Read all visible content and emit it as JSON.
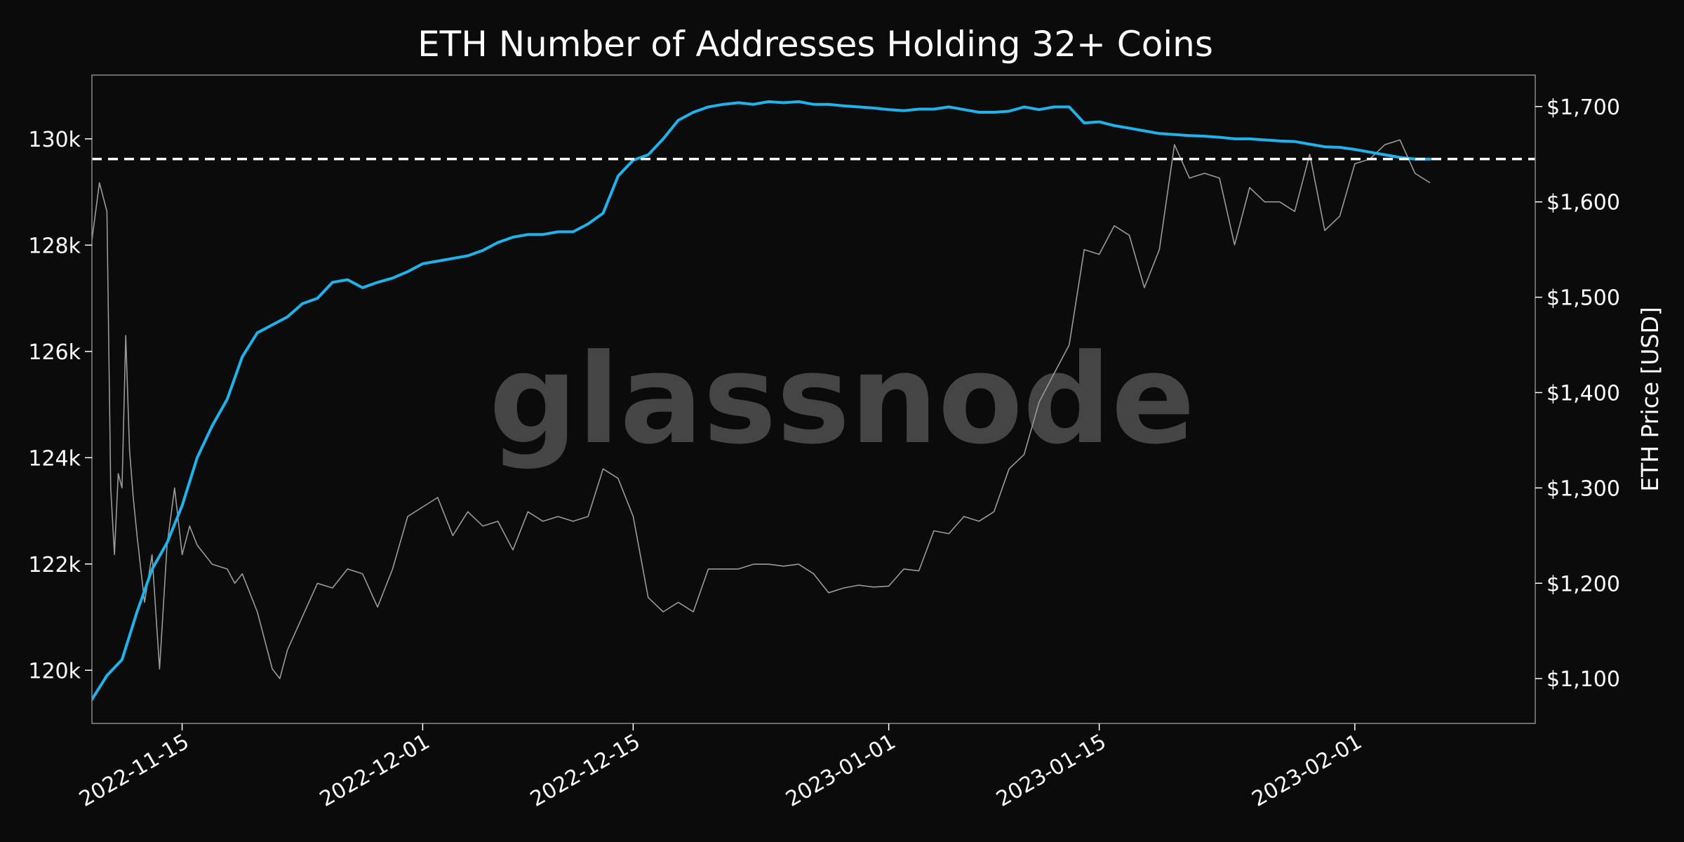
{
  "colors": {
    "background": "#0b0b0b",
    "text": "#ffffff",
    "addresses_line": "#1fb3ec",
    "price_line": "#9a9a9a",
    "threshold_line": "#ffffff",
    "frame": "#8a8a8a",
    "watermark": "#5a5a5a"
  },
  "watermark": "glassnode",
  "chart_data": {
    "type": "line",
    "title": "ETH Number of Addresses Holding 32+ Coins",
    "xlabel": "",
    "ylabel_left": "",
    "ylabel_right": "ETH Price [USD]",
    "x_range": [
      "2022-11-09",
      "2023-02-13"
    ],
    "ylim_left": [
      119000,
      131200
    ],
    "ylim_right": [
      1053,
      1733
    ],
    "x_ticks": [
      {
        "date": "2022-11-15",
        "label": "2022-11-15"
      },
      {
        "date": "2022-12-01",
        "label": "2022-12-01"
      },
      {
        "date": "2022-12-15",
        "label": "2022-12-15"
      },
      {
        "date": "2023-01-01",
        "label": "2023-01-01"
      },
      {
        "date": "2023-01-15",
        "label": "2023-01-15"
      },
      {
        "date": "2023-02-01",
        "label": "2023-02-01"
      }
    ],
    "y_ticks_left": [
      {
        "value": 120000,
        "label": "120k"
      },
      {
        "value": 122000,
        "label": "122k"
      },
      {
        "value": 124000,
        "label": "124k"
      },
      {
        "value": 126000,
        "label": "126k"
      },
      {
        "value": 128000,
        "label": "128k"
      },
      {
        "value": 130000,
        "label": "130k"
      }
    ],
    "y_ticks_right": [
      {
        "value": 1100,
        "label": "$1,100"
      },
      {
        "value": 1200,
        "label": "$1,200"
      },
      {
        "value": 1300,
        "label": "$1,300"
      },
      {
        "value": 1400,
        "label": "$1,400"
      },
      {
        "value": 1500,
        "label": "$1,500"
      },
      {
        "value": 1600,
        "label": "$1,600"
      },
      {
        "value": 1700,
        "label": "$1,700"
      }
    ],
    "threshold": {
      "value": 129620,
      "style": "dashed"
    },
    "grid": false,
    "series": [
      {
        "axis": "left",
        "points": [
          [
            "2022-11-09",
            119450
          ],
          [
            "2022-11-10",
            119900
          ],
          [
            "2022-11-11",
            120200
          ],
          [
            "2022-11-12",
            121100
          ],
          [
            "2022-11-13",
            121900
          ],
          [
            "2022-11-14",
            122400
          ],
          [
            "2022-11-15",
            123100
          ],
          [
            "2022-11-16",
            124000
          ],
          [
            "2022-11-17",
            124600
          ],
          [
            "2022-11-18",
            125100
          ],
          [
            "2022-11-19",
            125900
          ],
          [
            "2022-11-20",
            126350
          ],
          [
            "2022-11-21",
            126500
          ],
          [
            "2022-11-22",
            126650
          ],
          [
            "2022-11-23",
            126900
          ],
          [
            "2022-11-24",
            127000
          ],
          [
            "2022-11-25",
            127300
          ],
          [
            "2022-11-26",
            127350
          ],
          [
            "2022-11-27",
            127200
          ],
          [
            "2022-11-28",
            127300
          ],
          [
            "2022-11-29",
            127380
          ],
          [
            "2022-11-30",
            127500
          ],
          [
            "2022-12-01",
            127650
          ],
          [
            "2022-12-02",
            127700
          ],
          [
            "2022-12-03",
            127750
          ],
          [
            "2022-12-04",
            127800
          ],
          [
            "2022-12-05",
            127900
          ],
          [
            "2022-12-06",
            128050
          ],
          [
            "2022-12-07",
            128150
          ],
          [
            "2022-12-08",
            128200
          ],
          [
            "2022-12-09",
            128200
          ],
          [
            "2022-12-10",
            128250
          ],
          [
            "2022-12-11",
            128250
          ],
          [
            "2022-12-12",
            128400
          ],
          [
            "2022-12-13",
            128600
          ],
          [
            "2022-12-14",
            129300
          ],
          [
            "2022-12-15",
            129600
          ],
          [
            "2022-12-16",
            129700
          ],
          [
            "2022-12-17",
            130000
          ],
          [
            "2022-12-18",
            130350
          ],
          [
            "2022-12-19",
            130500
          ],
          [
            "2022-12-20",
            130600
          ],
          [
            "2022-12-21",
            130650
          ],
          [
            "2022-12-22",
            130680
          ],
          [
            "2022-12-23",
            130650
          ],
          [
            "2022-12-24",
            130700
          ],
          [
            "2022-12-25",
            130680
          ],
          [
            "2022-12-26",
            130700
          ],
          [
            "2022-12-27",
            130650
          ],
          [
            "2022-12-28",
            130650
          ],
          [
            "2022-12-29",
            130620
          ],
          [
            "2022-12-30",
            130600
          ],
          [
            "2022-12-31",
            130580
          ],
          [
            "2023-01-01",
            130550
          ],
          [
            "2023-01-02",
            130530
          ],
          [
            "2023-01-03",
            130560
          ],
          [
            "2023-01-04",
            130560
          ],
          [
            "2023-01-05",
            130600
          ],
          [
            "2023-01-06",
            130550
          ],
          [
            "2023-01-07",
            130500
          ],
          [
            "2023-01-08",
            130500
          ],
          [
            "2023-01-09",
            130520
          ],
          [
            "2023-01-10",
            130600
          ],
          [
            "2023-01-11",
            130550
          ],
          [
            "2023-01-12",
            130600
          ],
          [
            "2023-01-13",
            130600
          ],
          [
            "2023-01-14",
            130300
          ],
          [
            "2023-01-15",
            130320
          ],
          [
            "2023-01-16",
            130250
          ],
          [
            "2023-01-17",
            130200
          ],
          [
            "2023-01-18",
            130150
          ],
          [
            "2023-01-19",
            130100
          ],
          [
            "2023-01-20",
            130080
          ],
          [
            "2023-01-21",
            130060
          ],
          [
            "2023-01-22",
            130050
          ],
          [
            "2023-01-23",
            130030
          ],
          [
            "2023-01-24",
            130000
          ],
          [
            "2023-01-25",
            130000
          ],
          [
            "2023-01-26",
            129980
          ],
          [
            "2023-01-27",
            129960
          ],
          [
            "2023-01-28",
            129950
          ],
          [
            "2023-01-29",
            129900
          ],
          [
            "2023-01-30",
            129850
          ],
          [
            "2023-01-31",
            129840
          ],
          [
            "2023-02-01",
            129800
          ],
          [
            "2023-02-02",
            129750
          ],
          [
            "2023-02-03",
            129700
          ],
          [
            "2023-02-04",
            129650
          ],
          [
            "2023-02-05",
            129620
          ],
          [
            "2023-02-06",
            129620
          ]
        ]
      },
      {
        "axis": "right",
        "points": [
          [
            "2022-11-09",
            1560
          ],
          [
            "2022-11-09T12",
            1620
          ],
          [
            "2022-11-10",
            1590
          ],
          [
            "2022-11-10T06",
            1300
          ],
          [
            "2022-11-10T12",
            1230
          ],
          [
            "2022-11-10T18",
            1315
          ],
          [
            "2022-11-11",
            1300
          ],
          [
            "2022-11-11T06",
            1460
          ],
          [
            "2022-11-11T12",
            1340
          ],
          [
            "2022-11-11T18",
            1290
          ],
          [
            "2022-11-12",
            1250
          ],
          [
            "2022-11-12T12",
            1180
          ],
          [
            "2022-11-13",
            1230
          ],
          [
            "2022-11-13T12",
            1110
          ],
          [
            "2022-11-14",
            1240
          ],
          [
            "2022-11-14T12",
            1300
          ],
          [
            "2022-11-15",
            1230
          ],
          [
            "2022-11-15T12",
            1260
          ],
          [
            "2022-11-16",
            1240
          ],
          [
            "2022-11-17",
            1220
          ],
          [
            "2022-11-18",
            1215
          ],
          [
            "2022-11-18T12",
            1200
          ],
          [
            "2022-11-19",
            1210
          ],
          [
            "2022-11-20",
            1170
          ],
          [
            "2022-11-21",
            1110
          ],
          [
            "2022-11-21T12",
            1100
          ],
          [
            "2022-11-22",
            1130
          ],
          [
            "2022-11-23",
            1165
          ],
          [
            "2022-11-24",
            1200
          ],
          [
            "2022-11-25",
            1195
          ],
          [
            "2022-11-26",
            1215
          ],
          [
            "2022-11-27",
            1210
          ],
          [
            "2022-11-28",
            1175
          ],
          [
            "2022-11-29",
            1215
          ],
          [
            "2022-11-30",
            1270
          ],
          [
            "2022-12-01",
            1280
          ],
          [
            "2022-12-02",
            1290
          ],
          [
            "2022-12-03",
            1250
          ],
          [
            "2022-12-04",
            1275
          ],
          [
            "2022-12-05",
            1260
          ],
          [
            "2022-12-06",
            1265
          ],
          [
            "2022-12-07",
            1235
          ],
          [
            "2022-12-08",
            1275
          ],
          [
            "2022-12-09",
            1265
          ],
          [
            "2022-12-10",
            1270
          ],
          [
            "2022-12-11",
            1265
          ],
          [
            "2022-12-12",
            1270
          ],
          [
            "2022-12-13",
            1320
          ],
          [
            "2022-12-14",
            1310
          ],
          [
            "2022-12-15",
            1270
          ],
          [
            "2022-12-16",
            1185
          ],
          [
            "2022-12-17",
            1170
          ],
          [
            "2022-12-18",
            1180
          ],
          [
            "2022-12-19",
            1170
          ],
          [
            "2022-12-20",
            1215
          ],
          [
            "2022-12-21",
            1215
          ],
          [
            "2022-12-22",
            1215
          ],
          [
            "2022-12-23",
            1220
          ],
          [
            "2022-12-24",
            1220
          ],
          [
            "2022-12-25",
            1218
          ],
          [
            "2022-12-26",
            1220
          ],
          [
            "2022-12-27",
            1210
          ],
          [
            "2022-12-28",
            1190
          ],
          [
            "2022-12-29",
            1195
          ],
          [
            "2022-12-30",
            1198
          ],
          [
            "2022-12-31",
            1196
          ],
          [
            "2023-01-01",
            1197
          ],
          [
            "2023-01-02",
            1215
          ],
          [
            "2023-01-03",
            1213
          ],
          [
            "2023-01-04",
            1255
          ],
          [
            "2023-01-05",
            1252
          ],
          [
            "2023-01-06",
            1270
          ],
          [
            "2023-01-07",
            1265
          ],
          [
            "2023-01-08",
            1275
          ],
          [
            "2023-01-09",
            1320
          ],
          [
            "2023-01-10",
            1335
          ],
          [
            "2023-01-11",
            1390
          ],
          [
            "2023-01-12",
            1420
          ],
          [
            "2023-01-13",
            1450
          ],
          [
            "2023-01-14",
            1550
          ],
          [
            "2023-01-15",
            1545
          ],
          [
            "2023-01-16",
            1575
          ],
          [
            "2023-01-17",
            1565
          ],
          [
            "2023-01-18",
            1510
          ],
          [
            "2023-01-19",
            1550
          ],
          [
            "2023-01-20",
            1660
          ],
          [
            "2023-01-21",
            1625
          ],
          [
            "2023-01-22",
            1630
          ],
          [
            "2023-01-23",
            1625
          ],
          [
            "2023-01-24",
            1555
          ],
          [
            "2023-01-25",
            1615
          ],
          [
            "2023-01-26",
            1600
          ],
          [
            "2023-01-27",
            1600
          ],
          [
            "2023-01-28",
            1590
          ],
          [
            "2023-01-29",
            1650
          ],
          [
            "2023-01-30",
            1570
          ],
          [
            "2023-01-31",
            1585
          ],
          [
            "2023-02-01",
            1640
          ],
          [
            "2023-02-02",
            1645
          ],
          [
            "2023-02-03",
            1660
          ],
          [
            "2023-02-04",
            1665
          ],
          [
            "2023-02-05",
            1630
          ],
          [
            "2023-02-06",
            1620
          ]
        ]
      }
    ]
  }
}
